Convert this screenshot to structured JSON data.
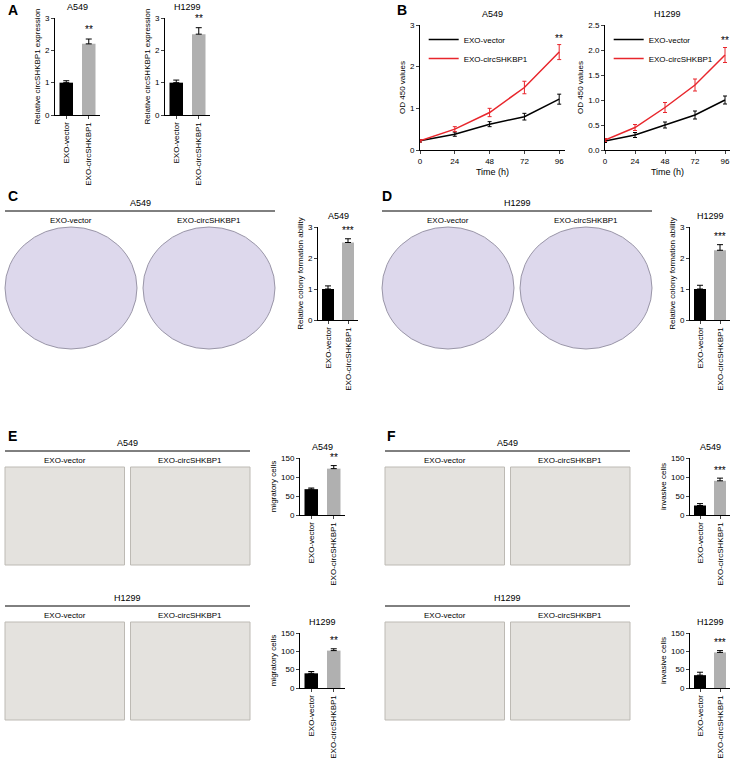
{
  "chart_data": [
    {
      "type": "bar",
      "title": "A549",
      "ylabel": "Relative circSHKBP1 expression",
      "categories": [
        "EXO-vector",
        "EXO-circSHKBP1"
      ],
      "values": [
        1.0,
        2.2
      ],
      "errors": [
        0.06,
        0.15
      ],
      "colors": [
        "#000000",
        "#b0b0b0"
      ],
      "ylim": [
        0,
        3
      ],
      "yticks": [
        0,
        1,
        2,
        3
      ],
      "annotations": [
        {
          "text": "**",
          "category": "EXO-circSHKBP1",
          "y": 2.4
        }
      ]
    },
    {
      "type": "bar",
      "title": "H1299",
      "ylabel": "Relative circSHKBP1 expression",
      "categories": [
        "EXO-vector",
        "EXO-circSHKBP1"
      ],
      "values": [
        1.0,
        2.5
      ],
      "errors": [
        0.08,
        0.2
      ],
      "colors": [
        "#000000",
        "#b0b0b0"
      ],
      "ylim": [
        0,
        3
      ],
      "yticks": [
        0,
        1,
        2,
        3
      ],
      "annotations": [
        {
          "text": "**",
          "category": "EXO-circSHKBP1",
          "y": 2.75
        }
      ]
    },
    {
      "type": "line",
      "title": "A549",
      "xlabel": "Time (h)",
      "ylabel": "OD 450 values",
      "x": [
        0,
        24,
        48,
        72,
        96
      ],
      "xlim": [
        0,
        100
      ],
      "xticks": [
        0,
        24,
        48,
        72,
        96
      ],
      "ylim": [
        0,
        3
      ],
      "yticks": [
        0,
        1,
        2,
        3
      ],
      "legend": "upper left",
      "series": [
        {
          "name": "EXO-vector",
          "color": "#000000",
          "values": [
            0.22,
            0.38,
            0.62,
            0.8,
            1.22
          ],
          "errors": [
            0.03,
            0.05,
            0.06,
            0.08,
            0.12
          ]
        },
        {
          "name": "EXO-circSHKBP1",
          "color": "#e8262c",
          "values": [
            0.22,
            0.5,
            0.9,
            1.5,
            2.35
          ],
          "errors": [
            0.03,
            0.06,
            0.1,
            0.15,
            0.18
          ]
        }
      ],
      "annotations": [
        {
          "text": "**",
          "x": 96,
          "y": 2.5
        }
      ]
    },
    {
      "type": "line",
      "title": "H1299",
      "xlabel": "Time (h)",
      "ylabel": "OD 450 values",
      "x": [
        0,
        24,
        48,
        72,
        96
      ],
      "xlim": [
        0,
        100
      ],
      "xticks": [
        0,
        24,
        48,
        72,
        96
      ],
      "ylim": [
        0,
        2.5
      ],
      "yticks": [
        {
          "value": 0,
          "label": "0.0"
        },
        0.5,
        {
          "value": 1,
          "label": "1.0"
        },
        1.5,
        {
          "value": 2,
          "label": "2.0"
        },
        2.5
      ],
      "legend": "upper left",
      "series": [
        {
          "name": "EXO-vector",
          "color": "#000000",
          "values": [
            0.18,
            0.3,
            0.5,
            0.7,
            1.0
          ],
          "errors": [
            0.03,
            0.05,
            0.06,
            0.08,
            0.08
          ]
        },
        {
          "name": "EXO-circSHKBP1",
          "color": "#e8262c",
          "values": [
            0.2,
            0.45,
            0.85,
            1.3,
            1.9
          ],
          "errors": [
            0.03,
            0.06,
            0.1,
            0.12,
            0.15
          ]
        }
      ],
      "annotations": [
        {
          "text": "**",
          "x": 96,
          "y": 2.03
        }
      ]
    },
    {
      "type": "bar",
      "title": "A549",
      "ylabel": "Relative colony formation ability",
      "categories": [
        "EXO-vector",
        "EXO-circSHKBP1"
      ],
      "values": [
        1.0,
        2.5
      ],
      "errors": [
        0.1,
        0.12
      ],
      "colors": [
        "#000000",
        "#b0b0b0"
      ],
      "ylim": [
        0,
        3
      ],
      "yticks": [
        0,
        1,
        2,
        3
      ],
      "annotations": [
        {
          "text": "***",
          "category": "EXO-circSHKBP1",
          "y": 2.65
        }
      ]
    },
    {
      "type": "bar",
      "title": "H1299",
      "ylabel": "Relative colony formation ability",
      "categories": [
        "EXO-vector",
        "EXO-circSHKBP1"
      ],
      "values": [
        1.0,
        2.25
      ],
      "errors": [
        0.12,
        0.18
      ],
      "colors": [
        "#000000",
        "#b0b0b0"
      ],
      "ylim": [
        0,
        3
      ],
      "yticks": [
        0,
        1,
        2,
        3
      ],
      "annotations": [
        {
          "text": "***",
          "category": "EXO-circSHKBP1",
          "y": 2.45
        }
      ]
    },
    {
      "type": "bar",
      "title": "A549",
      "ylabel": "migratory cells",
      "categories": [
        "EXO-vector",
        "EXO-circSHKBP1"
      ],
      "values": [
        68,
        122
      ],
      "errors": [
        3,
        8
      ],
      "colors": [
        "#000000",
        "#b0b0b0"
      ],
      "ylim": [
        0,
        150
      ],
      "yticks": [
        0,
        50,
        100,
        150
      ],
      "annotations": [
        {
          "text": "**",
          "category": "EXO-circSHKBP1",
          "y": 131
        }
      ]
    },
    {
      "type": "bar",
      "title": "H1299",
      "ylabel": "migratory cells",
      "categories": [
        "EXO-vector",
        "EXO-circSHKBP1"
      ],
      "values": [
        40,
        102
      ],
      "errors": [
        5,
        5
      ],
      "colors": [
        "#000000",
        "#b0b0b0"
      ],
      "ylim": [
        0,
        150
      ],
      "yticks": [
        0,
        50,
        100,
        150
      ],
      "annotations": [
        {
          "text": "**",
          "category": "EXO-circSHKBP1",
          "y": 108
        }
      ]
    },
    {
      "type": "bar",
      "title": "A549",
      "ylabel": "invasive cells",
      "categories": [
        "EXO-vector",
        "EXO-circSHKBP1"
      ],
      "values": [
        25,
        90
      ],
      "errors": [
        5,
        7
      ],
      "colors": [
        "#000000",
        "#b0b0b0"
      ],
      "ylim": [
        0,
        150
      ],
      "yticks": [
        0,
        50,
        100,
        150
      ],
      "annotations": [
        {
          "text": "***",
          "category": "EXO-circSHKBP1",
          "y": 98
        }
      ]
    },
    {
      "type": "bar",
      "title": "H1299",
      "ylabel": "invasive cells",
      "categories": [
        "EXO-vector",
        "EXO-circSHKBP1"
      ],
      "values": [
        35,
        97
      ],
      "errors": [
        8,
        5
      ],
      "colors": [
        "#000000",
        "#b0b0b0"
      ],
      "ylim": [
        0,
        150
      ],
      "yticks": [
        0,
        50,
        100,
        150
      ],
      "annotations": [
        {
          "text": "***",
          "category": "EXO-circSHKBP1",
          "y": 103
        }
      ]
    }
  ],
  "panels": [
    {
      "label": "A"
    },
    {
      "label": "B"
    },
    {
      "label": "C",
      "images": [
        {
          "title": "A549",
          "labels": [
            "EXO-vector",
            "EXO-circSHKBP1"
          ]
        }
      ]
    },
    {
      "label": "D",
      "images": [
        {
          "title": "H1299",
          "labels": [
            "EXO-vector",
            "EXO-circSHKBP1"
          ]
        }
      ]
    },
    {
      "label": "E",
      "images": [
        {
          "title": "A549",
          "labels": [
            "EXO-vector",
            "EXO-circSHKBP1"
          ]
        },
        {
          "title": "H1299",
          "labels": [
            "EXO-vector",
            "EXO-circSHKBP1"
          ]
        }
      ]
    },
    {
      "label": "F",
      "images": [
        {
          "title": "A549",
          "labels": [
            "EXO-vector",
            "EXO-circSHKBP1"
          ]
        },
        {
          "title": "H1299",
          "labels": [
            "EXO-vector",
            "EXO-circSHKBP1"
          ]
        }
      ]
    }
  ]
}
